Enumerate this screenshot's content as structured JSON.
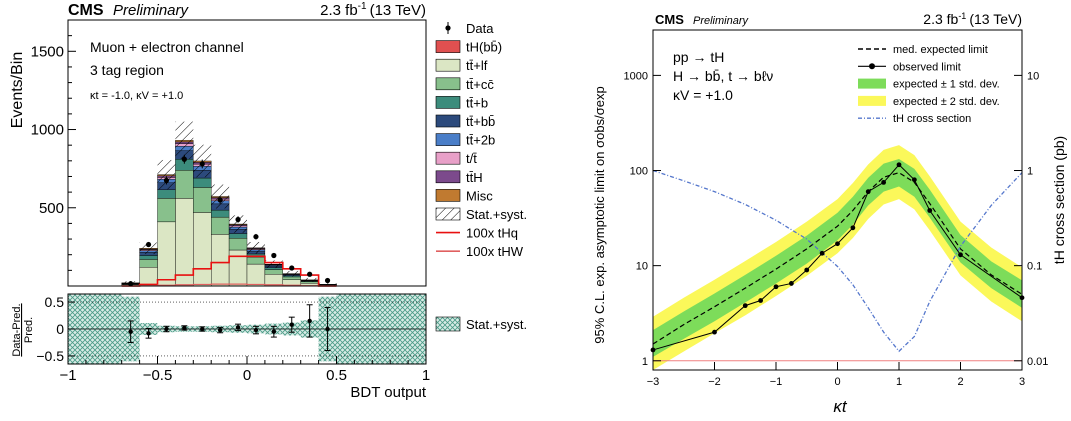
{
  "chart_data": [
    {
      "type": "bar",
      "panel": "left-top",
      "header": {
        "experiment": "CMS",
        "status": "Preliminary",
        "lumi": "2.3 fb",
        "lumi_sup": "-1",
        "energy": "(13 TeV)"
      },
      "annotations": [
        "Muon + electron channel",
        "3 tag region",
        "κt = -1.0, κV = +1.0"
      ],
      "ylabel": "Events/Bin",
      "ylim": [
        0,
        1700
      ],
      "yticks": [
        500,
        1000,
        1500
      ],
      "xlim": [
        -1,
        1
      ],
      "bins": [
        -0.7,
        -0.6,
        -0.5,
        -0.4,
        -0.3,
        -0.2,
        -0.1,
        0.0,
        0.1,
        0.2,
        0.3,
        0.4,
        0.5
      ],
      "stack": [
        {
          "name": "tH(bb̄)",
          "color": "#e05050",
          "values": [
            0,
            0,
            0,
            0,
            0,
            0,
            0,
            0,
            0,
            0,
            0,
            0
          ]
        },
        {
          "name": "tt̄+lf",
          "color": "#dbe6c4",
          "values": [
            8,
            120,
            410,
            560,
            470,
            330,
            230,
            140,
            75,
            40,
            18,
            6
          ]
        },
        {
          "name": "tt̄+cc̄",
          "color": "#88c08c",
          "values": [
            4,
            50,
            150,
            180,
            160,
            110,
            75,
            45,
            30,
            18,
            10,
            3
          ]
        },
        {
          "name": "tt̄+b",
          "color": "#3c8c7c",
          "values": [
            2,
            25,
            55,
            70,
            60,
            45,
            30,
            20,
            12,
            8,
            4,
            1
          ]
        },
        {
          "name": "tt̄+bb̄",
          "color": "#2c4a7c",
          "values": [
            2,
            20,
            45,
            55,
            50,
            40,
            28,
            18,
            10,
            6,
            3,
            1
          ]
        },
        {
          "name": "tt̄+2b",
          "color": "#4a7ec8",
          "values": [
            1,
            10,
            22,
            28,
            25,
            20,
            14,
            9,
            5,
            3,
            1,
            0
          ]
        },
        {
          "name": "t/t̄",
          "color": "#e8a0c8",
          "values": [
            1,
            6,
            12,
            16,
            14,
            11,
            8,
            5,
            3,
            2,
            1,
            0
          ]
        },
        {
          "name": "tt̄H",
          "color": "#7c4a8c",
          "values": [
            1,
            5,
            10,
            12,
            11,
            9,
            6,
            4,
            2,
            1,
            1,
            0
          ]
        },
        {
          "name": "Misc",
          "color": "#c07a30",
          "values": [
            1,
            5,
            8,
            10,
            9,
            7,
            5,
            3,
            2,
            1,
            1,
            0
          ]
        }
      ],
      "data_points": [
        {
          "x": -0.65,
          "y": 15
        },
        {
          "x": -0.55,
          "y": 265
        },
        {
          "x": -0.45,
          "y": 675
        },
        {
          "x": -0.35,
          "y": 810
        },
        {
          "x": -0.25,
          "y": 780
        },
        {
          "x": -0.15,
          "y": 550
        },
        {
          "x": -0.05,
          "y": 425
        },
        {
          "x": 0.05,
          "y": 315
        },
        {
          "x": 0.15,
          "y": 195
        },
        {
          "x": 0.25,
          "y": 115
        },
        {
          "x": 0.35,
          "y": 75
        },
        {
          "x": 0.45,
          "y": 35
        }
      ],
      "signal_tHq": [
        0,
        10,
        40,
        70,
        110,
        150,
        190,
        190,
        150,
        110,
        70,
        0
      ],
      "signal_tHW": [
        0,
        2,
        5,
        8,
        10,
        12,
        12,
        10,
        8,
        5,
        2,
        0
      ],
      "legend": [
        {
          "label": "Data",
          "kind": "marker"
        },
        {
          "label": "tH(bb̄)",
          "kind": "fill",
          "color": "#e05050"
        },
        {
          "label": "tt̄+lf",
          "kind": "fill",
          "color": "#dbe6c4"
        },
        {
          "label": "tt̄+cc̄",
          "kind": "fill",
          "color": "#88c08c"
        },
        {
          "label": "tt̄+b",
          "kind": "fill",
          "color": "#3c8c7c"
        },
        {
          "label": "tt̄+bb̄",
          "kind": "fill",
          "color": "#2c4a7c"
        },
        {
          "label": "tt̄+2b",
          "kind": "fill",
          "color": "#4a7ec8"
        },
        {
          "label": "t/t̄",
          "kind": "fill",
          "color": "#e8a0c8"
        },
        {
          "label": "tt̄H",
          "kind": "fill",
          "color": "#7c4a8c"
        },
        {
          "label": "Misc",
          "kind": "fill",
          "color": "#c07a30"
        },
        {
          "label": "Stat.+syst.",
          "kind": "hatch"
        },
        {
          "label": "100x tHq",
          "kind": "line",
          "color": "#e81010"
        },
        {
          "label": "100x tHW",
          "kind": "line",
          "color": "#e06060"
        }
      ]
    },
    {
      "type": "scatter",
      "panel": "left-bottom",
      "ylabel": "Data-Pred.",
      "ylabel_den": "Pred.",
      "xlabel": "BDT output",
      "xlim": [
        -1,
        1
      ],
      "ylim": [
        -0.65,
        0.65
      ],
      "xticks": [
        -1,
        -0.5,
        0,
        0.5,
        1
      ],
      "xticklabels": [
        "−1",
        "−0.5",
        "0",
        "0.5",
        "1"
      ],
      "yticks": [
        -0.5,
        0,
        0.5
      ],
      "yticklabels": [
        "−0.5",
        "0",
        "0.5"
      ],
      "band_halfwidth": [
        0.6,
        0.11,
        0.06,
        0.05,
        0.05,
        0.06,
        0.07,
        0.08,
        0.1,
        0.12,
        0.16,
        0.6
      ],
      "points": [
        {
          "x": -0.65,
          "y": -0.05,
          "err": 0.2
        },
        {
          "x": -0.55,
          "y": -0.08,
          "err": 0.09
        },
        {
          "x": -0.45,
          "y": 0.0,
          "err": 0.05
        },
        {
          "x": -0.35,
          "y": 0.02,
          "err": 0.04
        },
        {
          "x": -0.25,
          "y": 0.0,
          "err": 0.04
        },
        {
          "x": -0.15,
          "y": -0.02,
          "err": 0.05
        },
        {
          "x": -0.05,
          "y": 0.03,
          "err": 0.06
        },
        {
          "x": 0.05,
          "y": -0.02,
          "err": 0.07
        },
        {
          "x": 0.15,
          "y": -0.05,
          "err": 0.1
        },
        {
          "x": 0.25,
          "y": 0.08,
          "err": 0.14
        },
        {
          "x": 0.35,
          "y": 0.15,
          "err": 0.3
        },
        {
          "x": 0.45,
          "y": 0.0,
          "err": 0.4
        }
      ],
      "legend": [
        {
          "label": "Stat.+syst.",
          "kind": "crosshatch"
        }
      ]
    },
    {
      "type": "line",
      "panel": "right",
      "header": {
        "experiment": "CMS",
        "status": "Preliminary",
        "lumi": "2.3 fb",
        "lumi_sup": "-1",
        "energy": "(13 TeV)"
      },
      "annotations": [
        "pp → tH",
        "H → bb̄, t → bℓν",
        "κV = +1.0"
      ],
      "xlabel": "κt",
      "ylabel": "95% C.L. exp. asymptotic limit on σobs/σexp",
      "y2label": "tH cross section (pb)",
      "xlim": [
        -3,
        3
      ],
      "ylim": [
        0.8,
        3000
      ],
      "ylog": true,
      "xticks": [
        -3,
        -2,
        -1,
        0,
        1,
        2,
        3
      ],
      "xticklabels": [
        "−3",
        "−2",
        "−1",
        "0",
        "1",
        "2",
        "3"
      ],
      "yticks": [
        1,
        10,
        100,
        1000
      ],
      "yticklabels": [
        "1",
        "10",
        "100",
        "1000"
      ],
      "y2lim": [
        0.008,
        30
      ],
      "y2ticks": [
        0.01,
        0.1,
        1,
        10
      ],
      "y2ticklabels": [
        "0.01",
        "0.1",
        "1",
        "10"
      ],
      "legend": [
        {
          "label": "med. expected limit",
          "kind": "dashed"
        },
        {
          "label": "observed limit",
          "kind": "solid-marker"
        },
        {
          "label": "expected ± 1 std. dev.",
          "kind": "band",
          "color": "#7ddc5a"
        },
        {
          "label": "expected ± 2 std. dev.",
          "kind": "band",
          "color": "#fbf85a"
        },
        {
          "label": "tH cross section",
          "kind": "dashdot",
          "color": "#5577cc"
        }
      ],
      "expected_x": [
        -3.0,
        -2.5,
        -2.0,
        -1.5,
        -1.0,
        -0.5,
        0.0,
        0.25,
        0.5,
        0.75,
        1.0,
        1.25,
        1.5,
        2.0,
        2.5,
        3.0
      ],
      "expected": [
        1.5,
        2.4,
        3.7,
        5.8,
        9.2,
        15.0,
        26.0,
        38.0,
        60.0,
        85.0,
        95.0,
        75.0,
        45.0,
        15.0,
        8.0,
        5.0
      ],
      "band1_lo": [
        1.1,
        1.7,
        2.6,
        4.1,
        6.5,
        10.5,
        18.5,
        27.0,
        43.0,
        60.0,
        68.0,
        53.0,
        32.0,
        10.8,
        5.8,
        3.6
      ],
      "band1_hi": [
        2.1,
        3.3,
        5.1,
        8.0,
        12.7,
        20.7,
        36.0,
        53.0,
        84.0,
        118.0,
        132.0,
        104.0,
        63.0,
        21.0,
        11.1,
        7.0
      ],
      "band2_lo": [
        0.8,
        1.25,
        1.95,
        3.0,
        4.8,
        7.8,
        13.5,
        19.5,
        31.0,
        44.0,
        50.0,
        39.0,
        23.5,
        7.9,
        4.2,
        2.6
      ],
      "band2_hi": [
        2.9,
        4.6,
        7.1,
        11.2,
        17.7,
        29.0,
        50.0,
        74.0,
        116.0,
        165.0,
        185.0,
        145.0,
        87.0,
        29.0,
        15.5,
        9.6
      ],
      "observed": [
        {
          "x": -3.0,
          "y": 1.3
        },
        {
          "x": -2.0,
          "y": 2.0
        },
        {
          "x": -1.5,
          "y": 3.8
        },
        {
          "x": -1.25,
          "y": 4.3
        },
        {
          "x": -1.0,
          "y": 6.0
        },
        {
          "x": -0.75,
          "y": 6.5
        },
        {
          "x": -0.5,
          "y": 9.0
        },
        {
          "x": -0.25,
          "y": 13.5
        },
        {
          "x": 0.0,
          "y": 17.0
        },
        {
          "x": 0.25,
          "y": 25.0
        },
        {
          "x": 0.5,
          "y": 60.0
        },
        {
          "x": 0.75,
          "y": 75.0
        },
        {
          "x": 1.0,
          "y": 115.0
        },
        {
          "x": 1.25,
          "y": 80.0
        },
        {
          "x": 1.5,
          "y": 38.0
        },
        {
          "x": 2.0,
          "y": 13.0
        },
        {
          "x": 3.0,
          "y": 4.6
        }
      ],
      "xsec_x": [
        -3.0,
        -2.5,
        -2.0,
        -1.5,
        -1.0,
        -0.5,
        0.0,
        0.25,
        0.5,
        0.75,
        1.0,
        1.25,
        1.5,
        2.0,
        2.5,
        3.0
      ],
      "xsec": [
        1.0,
        0.78,
        0.6,
        0.44,
        0.3,
        0.19,
        0.098,
        0.063,
        0.036,
        0.02,
        0.0126,
        0.018,
        0.042,
        0.16,
        0.43,
        0.95
      ],
      "unit_line": {
        "y": 1.0,
        "color": "#f08080"
      }
    }
  ]
}
